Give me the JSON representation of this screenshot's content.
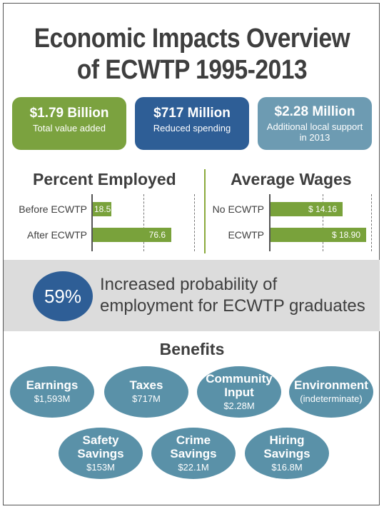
{
  "title": {
    "line1": "Economic Impacts Overview",
    "line2": "of ECWTP 1995-2013"
  },
  "stats": [
    {
      "value": "$1.79 Billion",
      "label": "Total value added",
      "color": "#7ba23f"
    },
    {
      "value": "$717 Million",
      "label": "Reduced spending",
      "color": "#2e5e96"
    },
    {
      "value": "$2.28 Million",
      "label": "Additional local support in 2013",
      "color": "#6d9bb2"
    }
  ],
  "percent_employed": {
    "heading": "Percent Employed",
    "bars": [
      {
        "label": "Before ECWTP",
        "value": 18.5,
        "value_text": "18.5"
      },
      {
        "label": "After ECWTP",
        "value": 76.6,
        "value_text": "76.6"
      }
    ]
  },
  "average_wages": {
    "heading": "Average Wages",
    "bars": [
      {
        "label": "No ECWTP",
        "value": 14.16,
        "value_text": "$ 14.16"
      },
      {
        "label": "ECWTP",
        "value": 18.9,
        "value_text": "$ 18.90"
      }
    ]
  },
  "highlight": {
    "percent": "59%",
    "line1": "Increased probability of",
    "line2": "employment for ECWTP graduates",
    "circle_color": "#2e5e96"
  },
  "benefits": {
    "heading": "Benefits",
    "row1": [
      {
        "name1": "Earnings",
        "name2": "",
        "value": "$1,593M"
      },
      {
        "name1": "Taxes",
        "name2": "",
        "value": "$717M"
      },
      {
        "name1": "Community",
        "name2": "Input",
        "value": "$2.28M"
      },
      {
        "name1": "Environment",
        "name2": "",
        "value": "(indeterminate)"
      }
    ],
    "row2": [
      {
        "name1": "Safety",
        "name2": "Savings",
        "value": "$153M"
      },
      {
        "name1": "Crime",
        "name2": "Savings",
        "value": "$22.1M"
      },
      {
        "name1": "Hiring",
        "name2": "Savings",
        "value": "$16.8M"
      }
    ],
    "oval_color": "#5a91a8"
  }
}
